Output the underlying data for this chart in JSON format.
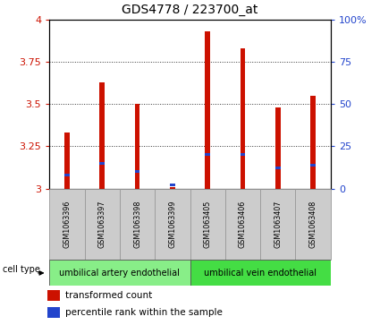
{
  "title": "GDS4778 / 223700_at",
  "samples": [
    "GSM1063396",
    "GSM1063397",
    "GSM1063398",
    "GSM1063399",
    "GSM1063405",
    "GSM1063406",
    "GSM1063407",
    "GSM1063408"
  ],
  "transformed_counts": [
    3.33,
    3.63,
    3.5,
    3.01,
    3.93,
    3.83,
    3.48,
    3.55
  ],
  "percentile_ranks_pct": [
    8,
    15,
    10,
    2,
    20,
    20,
    12,
    14
  ],
  "ylim": [
    3.0,
    4.0
  ],
  "yticks": [
    3.0,
    3.25,
    3.5,
    3.75,
    4.0
  ],
  "ytick_labels": [
    "3",
    "3.25",
    "3.5",
    "3.75",
    "4"
  ],
  "right_ytick_positions": [
    3.0,
    3.25,
    3.5,
    3.75,
    4.0
  ],
  "right_ytick_labels": [
    "0",
    "25",
    "50",
    "75",
    "100%"
  ],
  "bar_color": "#cc1100",
  "percentile_color": "#2244cc",
  "bar_width": 0.15,
  "cell_groups": [
    {
      "label": "umbilical artery endothelial",
      "start": 0,
      "end": 3,
      "color": "#88ee88"
    },
    {
      "label": "umbilical vein endothelial",
      "start": 4,
      "end": 7,
      "color": "#44dd44"
    }
  ],
  "cell_type_label": "cell type",
  "legend_items": [
    {
      "label": "transformed count",
      "color": "#cc1100"
    },
    {
      "label": "percentile rank within the sample",
      "color": "#2244cc"
    }
  ],
  "tick_color_left": "#cc1100",
  "tick_color_right": "#2244cc",
  "label_box_color": "#cccccc",
  "label_box_edge": "#999999"
}
